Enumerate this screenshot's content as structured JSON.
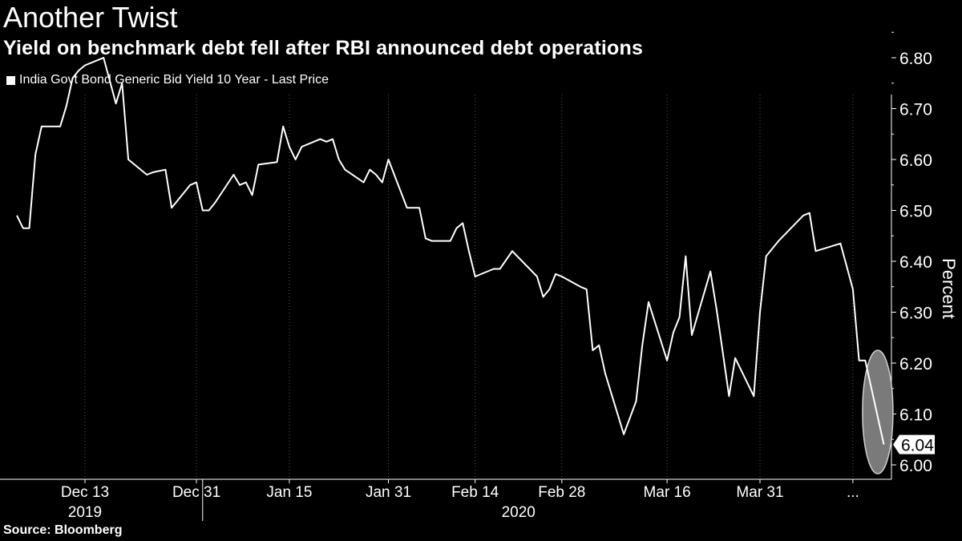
{
  "header": {
    "title": "Another Twist",
    "subtitle": "Yield on benchmark debt fell after RBI announced debt operations"
  },
  "footer": {
    "source": "Source: Bloomberg"
  },
  "colors": {
    "background": "#000000",
    "line": "#ffffff",
    "gridline": "#555555",
    "highlight_ellipse": "#7a7a7a"
  },
  "chart_data": {
    "type": "line",
    "title": "Another Twist",
    "subtitle": "Yield on benchmark debt fell after RBI announced debt operations",
    "ylabel": "Percent",
    "xlabel": "",
    "ylim": [
      6.0,
      6.85
    ],
    "y_ticks": [
      "6.00",
      "6.10",
      "6.20",
      "6.30",
      "6.40",
      "6.50",
      "6.60",
      "6.70",
      "6.80"
    ],
    "y_axis_side": "right",
    "grid": "vertical dotted",
    "legend": "top-left",
    "x_tick_labels": [
      "Dec 13",
      "Dec 31",
      "Jan 15",
      "Jan 31",
      "Feb 14",
      "Feb 28",
      "Mar 16",
      "Mar 31",
      "..."
    ],
    "x_year_labels": [
      "2019",
      "2020"
    ],
    "last_value_label": "6.04",
    "annotation": "highlight ellipse around the final drop",
    "series": [
      {
        "name": "India Govt Bond Generic Bid Yield 10 Year - Last Price",
        "x": [
          "2019-12-02",
          "2019-12-03",
          "2019-12-04",
          "2019-12-05",
          "2019-12-06",
          "2019-12-09",
          "2019-12-10",
          "2019-12-11",
          "2019-12-12",
          "2019-12-13",
          "2019-12-16",
          "2019-12-17",
          "2019-12-18",
          "2019-12-19",
          "2019-12-20",
          "2019-12-23",
          "2019-12-24",
          "2019-12-26",
          "2019-12-27",
          "2019-12-30",
          "2019-12-31",
          "2020-01-01",
          "2020-01-02",
          "2020-01-03",
          "2020-01-06",
          "2020-01-07",
          "2020-01-08",
          "2020-01-09",
          "2020-01-10",
          "2020-01-13",
          "2020-01-14",
          "2020-01-15",
          "2020-01-16",
          "2020-01-17",
          "2020-01-20",
          "2020-01-21",
          "2020-01-22",
          "2020-01-23",
          "2020-01-24",
          "2020-01-27",
          "2020-01-28",
          "2020-01-29",
          "2020-01-30",
          "2020-01-31",
          "2020-02-03",
          "2020-02-04",
          "2020-02-05",
          "2020-02-06",
          "2020-02-07",
          "2020-02-10",
          "2020-02-11",
          "2020-02-12",
          "2020-02-13",
          "2020-02-14",
          "2020-02-17",
          "2020-02-18",
          "2020-02-20",
          "2020-02-24",
          "2020-02-25",
          "2020-02-26",
          "2020-02-27",
          "2020-02-28",
          "2020-03-02",
          "2020-03-03",
          "2020-03-04",
          "2020-03-05",
          "2020-03-06",
          "2020-03-09",
          "2020-03-11",
          "2020-03-12",
          "2020-03-13",
          "2020-03-16",
          "2020-03-17",
          "2020-03-18",
          "2020-03-19",
          "2020-03-20",
          "2020-03-23",
          "2020-03-24",
          "2020-03-25",
          "2020-03-26",
          "2020-03-27",
          "2020-03-30",
          "2020-03-31",
          "2020-04-01",
          "2020-04-03",
          "2020-04-07",
          "2020-04-08",
          "2020-04-09",
          "2020-04-13",
          "2020-04-15",
          "2020-04-16",
          "2020-04-17",
          "2020-04-20"
        ],
        "values": [
          6.49,
          6.465,
          6.465,
          6.61,
          6.665,
          6.665,
          6.705,
          6.76,
          6.775,
          6.785,
          6.8,
          6.755,
          6.71,
          6.75,
          6.6,
          6.57,
          6.575,
          6.58,
          6.505,
          6.55,
          6.555,
          6.5,
          6.5,
          6.515,
          6.57,
          6.55,
          6.555,
          6.53,
          6.59,
          6.595,
          6.665,
          6.625,
          6.6,
          6.625,
          6.64,
          6.635,
          6.64,
          6.6,
          6.58,
          6.555,
          6.58,
          6.57,
          6.555,
          6.6,
          6.505,
          6.505,
          6.505,
          6.445,
          6.44,
          6.44,
          6.465,
          6.475,
          6.42,
          6.37,
          6.385,
          6.385,
          6.42,
          6.37,
          6.33,
          6.345,
          6.375,
          6.37,
          6.35,
          6.345,
          6.225,
          6.235,
          6.18,
          6.06,
          6.125,
          6.235,
          6.32,
          6.205,
          6.26,
          6.29,
          6.41,
          6.255,
          6.38,
          6.305,
          6.22,
          6.135,
          6.21,
          6.135,
          6.3,
          6.41,
          6.44,
          6.49,
          6.495,
          6.42,
          6.435,
          6.345,
          6.205,
          6.205,
          6.04
        ]
      }
    ]
  }
}
